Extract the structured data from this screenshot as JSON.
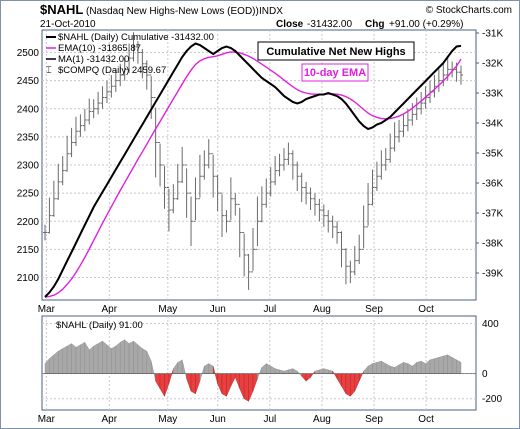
{
  "header": {
    "symbol": "$NAHL",
    "description": "(Nasdaq New Highs-New Lows (EOD))",
    "exchange": "INDX",
    "date": "21-Oct-2010",
    "close_label": "Close",
    "close_value": "-31432.00",
    "chg_label": "Chg",
    "chg_value": "+91.00 (+0.29%)",
    "source": "© StockCharts.com"
  },
  "legend": {
    "cumulative": "$NAHL (Daily) Cumulative -31432.00",
    "ema": "EMA(10) -31865.87",
    "ma": "MA(1) -31432.00",
    "compq": "$COMPQ (Daily) 2459.67"
  },
  "annotations": {
    "box1": "Cumulative Net New Highs",
    "box2": "10-day EMA"
  },
  "lower_panel": {
    "label": "$NAHL (Daily) 91.00"
  },
  "colors": {
    "cumulative": "#000000",
    "ema": "#e020e0",
    "compq_bars": "#6a6a6a",
    "hist_positive": "#a8a8a8",
    "hist_negative": "#e84040",
    "frame": "#4a6080",
    "annotation_ema_text": "#e020e0"
  },
  "chart_data": [
    {
      "type": "line",
      "x_ticks": [
        "Mar",
        "Apr",
        "May",
        "Jun",
        "Jul",
        "Aug",
        "Sep",
        "Oct"
      ],
      "left_axis": {
        "label": "$COMPQ",
        "ticks": [
          2100,
          2150,
          2200,
          2250,
          2300,
          2350,
          2400,
          2450,
          2500
        ],
        "range": [
          2060,
          2540
        ]
      },
      "right_axis": {
        "label": "Cumulative",
        "ticks": [
          "-31K",
          "-32K",
          "-33K",
          "-34K",
          "-35K",
          "-36K",
          "-37K",
          "-38K",
          "-39K"
        ],
        "range": [
          -39.9,
          -30.9
        ]
      },
      "series": [
        {
          "name": "$NAHL (Daily) Cumulative",
          "axis": "right",
          "style": "line",
          "values": [
            -39.8,
            -39.65,
            -39.45,
            -39.2,
            -38.9,
            -38.6,
            -38.3,
            -38.0,
            -37.7,
            -37.4,
            -37.1,
            -36.8,
            -36.55,
            -36.3,
            -36.05,
            -35.8,
            -35.55,
            -35.3,
            -35.05,
            -34.8,
            -34.55,
            -34.3,
            -34.05,
            -33.8,
            -33.55,
            -33.3,
            -33.05,
            -32.8,
            -32.55,
            -32.3,
            -32.05,
            -31.8,
            -31.6,
            -31.45,
            -31.35,
            -31.4,
            -31.5,
            -31.6,
            -31.7,
            -31.6,
            -31.5,
            -31.45,
            -31.5,
            -31.6,
            -31.75,
            -31.9,
            -32.05,
            -32.2,
            -32.35,
            -32.5,
            -32.6,
            -32.7,
            -32.8,
            -32.95,
            -33.1,
            -33.2,
            -33.3,
            -33.35,
            -33.3,
            -33.2,
            -33.15,
            -33.1,
            -33.05,
            -33.05,
            -33.0,
            -33.05,
            -33.1,
            -33.2,
            -33.35,
            -33.55,
            -33.75,
            -33.95,
            -34.1,
            -34.2,
            -34.15,
            -34.05,
            -34.0,
            -33.9,
            -33.8,
            -33.65,
            -33.5,
            -33.35,
            -33.2,
            -33.05,
            -32.9,
            -32.75,
            -32.6,
            -32.45,
            -32.3,
            -32.15,
            -32.0,
            -31.8,
            -31.6,
            -31.45,
            -31.43
          ]
        },
        {
          "name": "EMA(10)",
          "axis": "right",
          "style": "line",
          "values": [
            -39.8,
            -39.78,
            -39.74,
            -39.66,
            -39.54,
            -39.38,
            -39.2,
            -38.98,
            -38.74,
            -38.48,
            -38.2,
            -37.91,
            -37.63,
            -37.34,
            -37.06,
            -36.79,
            -36.52,
            -36.25,
            -35.99,
            -35.73,
            -35.47,
            -35.21,
            -34.96,
            -34.71,
            -34.45,
            -34.2,
            -33.95,
            -33.7,
            -33.45,
            -33.2,
            -32.95,
            -32.7,
            -32.46,
            -32.24,
            -32.05,
            -31.93,
            -31.86,
            -31.81,
            -31.79,
            -31.76,
            -31.71,
            -31.66,
            -31.63,
            -31.64,
            -31.66,
            -31.71,
            -31.77,
            -31.85,
            -31.94,
            -32.04,
            -32.14,
            -32.24,
            -32.34,
            -32.45,
            -32.57,
            -32.68,
            -32.79,
            -32.89,
            -32.96,
            -33.0,
            -33.03,
            -33.04,
            -33.04,
            -33.04,
            -33.03,
            -33.03,
            -33.04,
            -33.07,
            -33.12,
            -33.2,
            -33.3,
            -33.42,
            -33.55,
            -33.67,
            -33.76,
            -33.81,
            -33.85,
            -33.86,
            -33.85,
            -33.82,
            -33.77,
            -33.7,
            -33.61,
            -33.51,
            -33.39,
            -33.27,
            -33.14,
            -33.01,
            -32.88,
            -32.74,
            -32.6,
            -32.45,
            -32.27,
            -32.1,
            -31.87
          ]
        },
        {
          "name": "$COMPQ (Daily)",
          "axis": "left",
          "style": "ohlc-bars",
          "values": [
            2180,
            2210,
            2240,
            2270,
            2290,
            2320,
            2340,
            2360,
            2370,
            2380,
            2395,
            2400,
            2410,
            2420,
            2430,
            2440,
            2450,
            2460,
            2470,
            2490,
            2510,
            2500,
            2480,
            2460,
            2420,
            2340,
            2300,
            2260,
            2220,
            2240,
            2270,
            2300,
            2250,
            2200,
            2240,
            2280,
            2300,
            2320,
            2280,
            2250,
            2210,
            2200,
            2240,
            2230,
            2180,
            2140,
            2110,
            2150,
            2200,
            2230,
            2250,
            2270,
            2290,
            2300,
            2310,
            2320,
            2300,
            2280,
            2260,
            2250,
            2240,
            2230,
            2220,
            2210,
            2200,
            2190,
            2180,
            2150,
            2120,
            2110,
            2130,
            2150,
            2190,
            2230,
            2260,
            2280,
            2300,
            2310,
            2330,
            2350,
            2360,
            2370,
            2380,
            2390,
            2400,
            2410,
            2420,
            2430,
            2440,
            2450,
            2460,
            2470,
            2470,
            2465,
            2460
          ]
        }
      ]
    },
    {
      "type": "area",
      "y_ticks": [
        400,
        0,
        -200
      ],
      "range": [
        -290,
        460
      ],
      "series": [
        {
          "name": "$NAHL (Daily)",
          "values": [
            80,
            120,
            150,
            180,
            200,
            220,
            240,
            210,
            230,
            250,
            190,
            220,
            240,
            260,
            230,
            200,
            220,
            250,
            270,
            240,
            260,
            230,
            200,
            180,
            100,
            -60,
            -120,
            -180,
            -80,
            40,
            90,
            110,
            -40,
            -140,
            -160,
            -60,
            60,
            80,
            60,
            -80,
            -160,
            -180,
            -100,
            -30,
            -120,
            -200,
            -220,
            -140,
            -40,
            50,
            80,
            60,
            40,
            30,
            20,
            30,
            40,
            20,
            -20,
            -60,
            -30,
            20,
            30,
            40,
            30,
            20,
            -40,
            -100,
            -160,
            -180,
            -140,
            -60,
            20,
            60,
            80,
            90,
            100,
            80,
            60,
            50,
            70,
            90,
            80,
            60,
            90,
            100,
            80,
            110,
            120,
            130,
            140,
            150,
            130,
            110,
            91
          ]
        }
      ]
    }
  ]
}
